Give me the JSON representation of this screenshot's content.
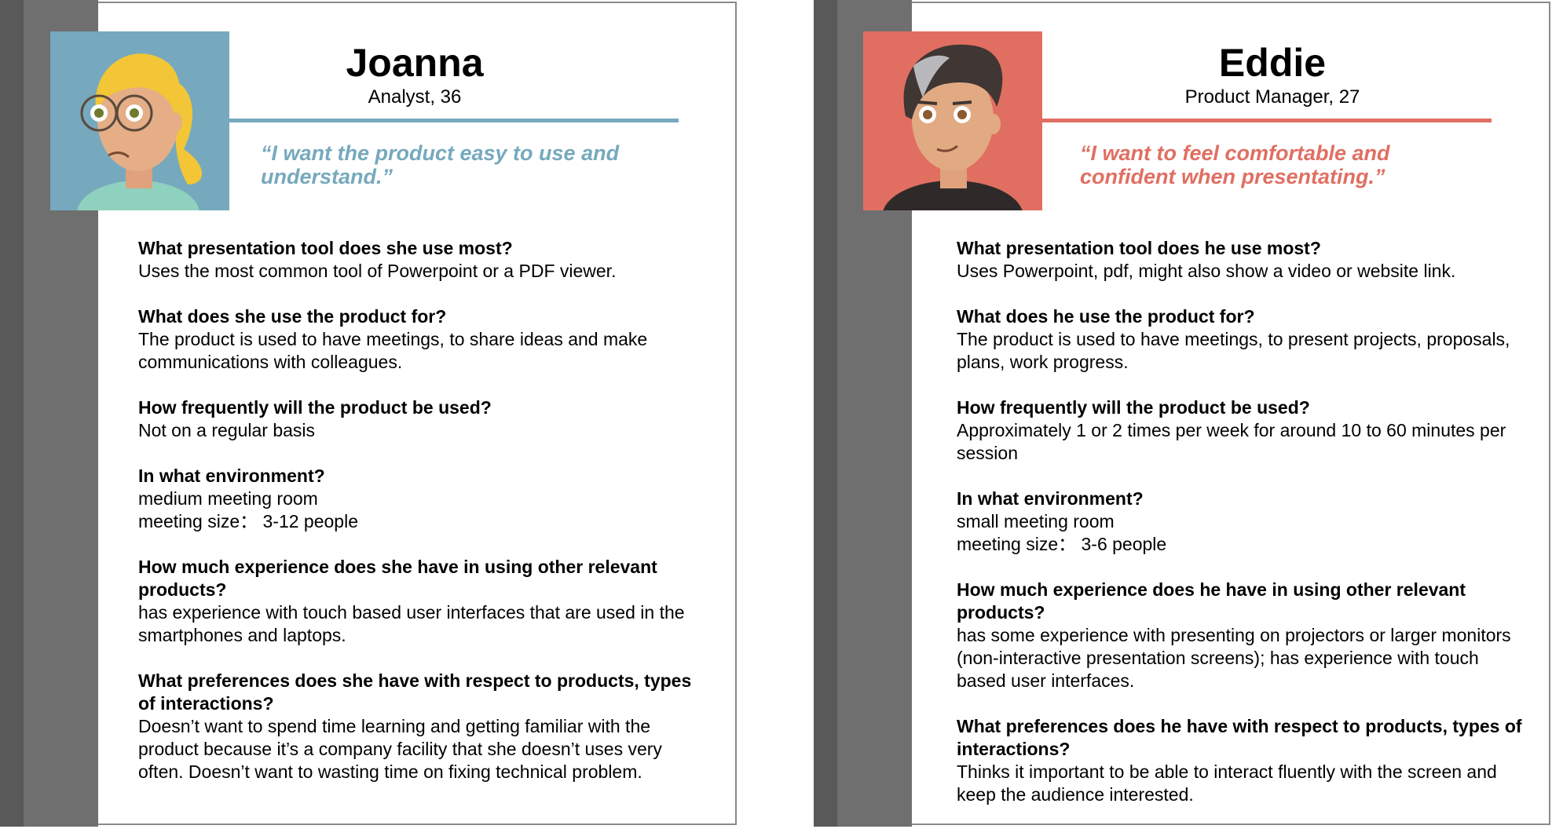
{
  "colors": {
    "joanna_accent": "#76a9bd",
    "eddie_accent": "#e06f62"
  },
  "personas": [
    {
      "name": "Joanna",
      "role": "Analyst, 36",
      "quote": "“I want the product easy to use and understand.”",
      "avatar_icon": "woman-blonde-glasses-icon",
      "qa": [
        {
          "q": "What presentation tool does she use most?",
          "a": "Uses the most common tool of Powerpoint or a PDF viewer."
        },
        {
          "q": "What does she use the product for?",
          "a": "The product is used to have meetings, to share ideas and make communications with colleagues."
        },
        {
          "q": "How frequently will the product be used?",
          "a": "Not on a regular basis"
        },
        {
          "q": "In what environment?",
          "a": "medium meeting room\nmeeting size： 3-12 people"
        },
        {
          "q": "How much experience does she have in using other relevant products?",
          "a": "has experience with touch based user interfaces that are used in the smartphones and laptops."
        },
        {
          "q": "What preferences does she have with respect to products, types of interactions?",
          "a": "Doesn’t want to spend time learning and getting familiar with the product because it’s a company facility that she doesn’t uses very often. Doesn’t want to wasting time on fixing technical problem."
        }
      ]
    },
    {
      "name": "Eddie",
      "role": "Product Manager, 27",
      "quote": "“I want to feel comfortable and confident when presentating.”",
      "avatar_icon": "man-dark-hair-icon",
      "qa": [
        {
          "q": "What presentation tool does he use most?",
          "a": "Uses Powerpoint, pdf, might also show a video or website link."
        },
        {
          "q": "What does he use the product for?",
          "a": "The product is used to have meetings, to present projects, proposals, plans, work progress."
        },
        {
          "q": "How frequently will the product be used?",
          "a": "Approximately 1 or 2 times per week for around 10 to 60 minutes per session"
        },
        {
          "q": "In what environment?",
          "a": "small meeting room\nmeeting size： 3-6 people"
        },
        {
          "q": "How much experience does he have in using other relevant products?",
          "a": "has some experience with presenting on projectors or larger monitors (non-interactive presentation screens); has experience with touch based user interfaces."
        },
        {
          "q": "What preferences does he have with respect to products, types of interactions?",
          "a": "Thinks it important to be able to interact fluently with the screen and keep the audience interested."
        }
      ]
    }
  ]
}
